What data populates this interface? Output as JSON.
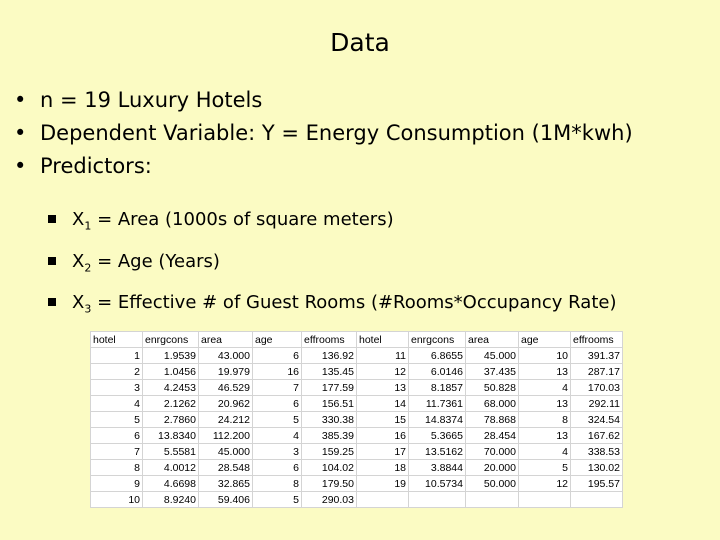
{
  "title": "Data",
  "bullets": [
    "n = 19 Luxury Hotels",
    "Dependent Variable: Y = Energy Consumption (1M*kwh)",
    "Predictors:"
  ],
  "predictors": [
    {
      "var": "X",
      "sub": "1",
      "text": " = Area (1000s of square meters)"
    },
    {
      "var": "X",
      "sub": "2",
      "text": " = Age (Years)"
    },
    {
      "var": "X",
      "sub": "3",
      "text": " = Effective # of Guest Rooms (#Rooms*Occupancy Rate)"
    }
  ],
  "table": {
    "headers": [
      "hotel",
      "enrgcons",
      "area",
      "age",
      "effrooms",
      "hotel",
      "enrgcons",
      "area",
      "age",
      "effrooms"
    ],
    "rows": [
      [
        "1",
        "1.9539",
        "43.000",
        "6",
        "136.92",
        "11",
        "6.8655",
        "45.000",
        "10",
        "391.37"
      ],
      [
        "2",
        "1.0456",
        "19.979",
        "16",
        "135.45",
        "12",
        "6.0146",
        "37.435",
        "13",
        "287.17"
      ],
      [
        "3",
        "4.2453",
        "46.529",
        "7",
        "177.59",
        "13",
        "8.1857",
        "50.828",
        "4",
        "170.03"
      ],
      [
        "4",
        "2.1262",
        "20.962",
        "6",
        "156.51",
        "14",
        "11.7361",
        "68.000",
        "13",
        "292.11"
      ],
      [
        "5",
        "2.7860",
        "24.212",
        "5",
        "330.38",
        "15",
        "14.8374",
        "78.868",
        "8",
        "324.54"
      ],
      [
        "6",
        "13.8340",
        "112.200",
        "4",
        "385.39",
        "16",
        "5.3665",
        "28.454",
        "13",
        "167.62"
      ],
      [
        "7",
        "5.5581",
        "45.000",
        "3",
        "159.25",
        "17",
        "13.5162",
        "70.000",
        "4",
        "338.53"
      ],
      [
        "8",
        "4.0012",
        "28.548",
        "6",
        "104.02",
        "18",
        "3.8844",
        "20.000",
        "5",
        "130.02"
      ],
      [
        "9",
        "4.6698",
        "32.865",
        "8",
        "179.50",
        "19",
        "10.5734",
        "50.000",
        "12",
        "195.57"
      ],
      [
        "10",
        "8.9240",
        "59.406",
        "5",
        "290.03",
        "",
        "",
        "",
        "",
        ""
      ]
    ]
  }
}
